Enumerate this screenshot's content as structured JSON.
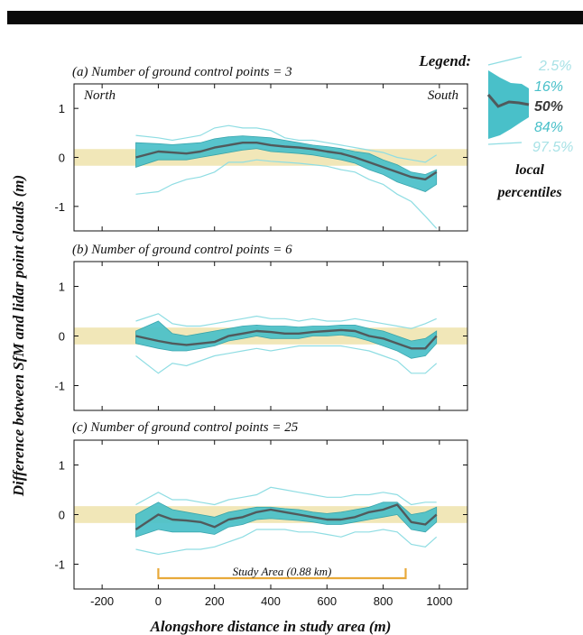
{
  "figure": {
    "ylabel": "Difference between SfM and lidar point clouds (m)",
    "xlabel": "Alongshore distance in study area (m)",
    "north_label": "North",
    "south_label": "South",
    "study_area_label": "Study Area (0.88 km)",
    "study_area_range": [
      0,
      880
    ],
    "reference_band": [
      -0.17,
      0.17
    ]
  },
  "legend": {
    "title": "Legend:",
    "p025": "2.5%",
    "p16": "16%",
    "p50": "50%",
    "p84": "84%",
    "p975": "97.5%",
    "caption_line1": "local",
    "caption_line2": "percentiles"
  },
  "colors": {
    "band_fill": "#49c0c9",
    "band_edge": "#2a9fa8",
    "outer_line": "#8fdde3",
    "median": "#505a5c",
    "reference_band": "#efe3ac",
    "study_area_bracket": "#e8a93a",
    "study_area_text": "#8a2c1a",
    "legend_teal": "#49c0c9",
    "legend_light": "#a8e2e6",
    "legend_dark": "#3a3a3a"
  },
  "chart_data": [
    {
      "type": "line",
      "title": "(a) Number of ground control points = 3",
      "xlim": [
        -300,
        1100
      ],
      "ylim": [
        -1.5,
        1.5
      ],
      "xticks": [
        -200,
        0,
        200,
        400,
        600,
        800,
        1000
      ],
      "yticks": [
        -1,
        0,
        1
      ],
      "x": [
        -80,
        0,
        50,
        100,
        150,
        200,
        250,
        300,
        350,
        400,
        450,
        500,
        550,
        600,
        650,
        700,
        750,
        800,
        850,
        900,
        950,
        990
      ],
      "series": [
        {
          "name": "97.5%",
          "values": [
            0.45,
            0.4,
            0.35,
            0.4,
            0.45,
            0.6,
            0.65,
            0.6,
            0.6,
            0.55,
            0.4,
            0.35,
            0.35,
            0.3,
            0.25,
            0.2,
            0.15,
            0.1,
            0.0,
            -0.05,
            -0.1,
            0.05
          ]
        },
        {
          "name": "84%",
          "values": [
            0.3,
            0.28,
            0.26,
            0.28,
            0.3,
            0.38,
            0.42,
            0.44,
            0.42,
            0.4,
            0.35,
            0.3,
            0.25,
            0.22,
            0.18,
            0.12,
            0.08,
            -0.05,
            -0.15,
            -0.3,
            -0.35,
            -0.25
          ]
        },
        {
          "name": "50%",
          "values": [
            0.0,
            0.12,
            0.1,
            0.08,
            0.12,
            0.2,
            0.25,
            0.3,
            0.3,
            0.25,
            0.22,
            0.2,
            0.17,
            0.12,
            0.08,
            0.0,
            -0.1,
            -0.2,
            -0.3,
            -0.4,
            -0.45,
            -0.3
          ]
        },
        {
          "name": "16%",
          "values": [
            -0.2,
            -0.05,
            -0.05,
            -0.05,
            0.0,
            0.05,
            0.1,
            0.15,
            0.18,
            0.12,
            0.1,
            0.08,
            0.05,
            0.0,
            -0.05,
            -0.12,
            -0.25,
            -0.35,
            -0.5,
            -0.6,
            -0.7,
            -0.55
          ]
        },
        {
          "name": "2.5%",
          "values": [
            -0.75,
            -0.7,
            -0.55,
            -0.45,
            -0.4,
            -0.3,
            -0.1,
            -0.1,
            -0.05,
            -0.08,
            -0.1,
            -0.12,
            -0.15,
            -0.18,
            -0.25,
            -0.3,
            -0.45,
            -0.55,
            -0.75,
            -0.9,
            -1.2,
            -1.45
          ]
        }
      ]
    },
    {
      "type": "line",
      "title": "(b) Number of ground control points = 6",
      "xlim": [
        -300,
        1100
      ],
      "ylim": [
        -1.5,
        1.5
      ],
      "xticks": [
        -200,
        0,
        200,
        400,
        600,
        800,
        1000
      ],
      "yticks": [
        -1,
        0,
        1
      ],
      "x": [
        -80,
        0,
        50,
        100,
        150,
        200,
        250,
        300,
        350,
        400,
        450,
        500,
        550,
        600,
        650,
        700,
        750,
        800,
        850,
        900,
        950,
        990
      ],
      "series": [
        {
          "name": "97.5%",
          "values": [
            0.3,
            0.45,
            0.25,
            0.2,
            0.2,
            0.25,
            0.3,
            0.35,
            0.4,
            0.35,
            0.35,
            0.3,
            0.35,
            0.3,
            0.3,
            0.35,
            0.3,
            0.25,
            0.2,
            0.15,
            0.25,
            0.35
          ]
        },
        {
          "name": "84%",
          "values": [
            0.1,
            0.3,
            0.05,
            0.0,
            0.05,
            0.1,
            0.15,
            0.2,
            0.22,
            0.2,
            0.2,
            0.18,
            0.2,
            0.2,
            0.22,
            0.22,
            0.15,
            0.1,
            0.0,
            -0.1,
            -0.05,
            0.1
          ]
        },
        {
          "name": "50%",
          "values": [
            0.0,
            -0.1,
            -0.15,
            -0.18,
            -0.15,
            -0.12,
            0.0,
            0.05,
            0.1,
            0.08,
            0.05,
            0.05,
            0.08,
            0.1,
            0.12,
            0.1,
            0.0,
            -0.05,
            -0.15,
            -0.25,
            -0.25,
            0.0
          ]
        },
        {
          "name": "16%",
          "values": [
            -0.15,
            -0.25,
            -0.3,
            -0.3,
            -0.25,
            -0.2,
            -0.1,
            -0.05,
            0.0,
            -0.05,
            -0.05,
            -0.05,
            0.0,
            0.0,
            0.02,
            -0.02,
            -0.1,
            -0.2,
            -0.3,
            -0.45,
            -0.4,
            -0.15
          ]
        },
        {
          "name": "2.5%",
          "values": [
            -0.4,
            -0.75,
            -0.55,
            -0.6,
            -0.5,
            -0.4,
            -0.35,
            -0.3,
            -0.25,
            -0.3,
            -0.25,
            -0.2,
            -0.2,
            -0.2,
            -0.2,
            -0.25,
            -0.3,
            -0.4,
            -0.5,
            -0.75,
            -0.75,
            -0.55
          ]
        }
      ]
    },
    {
      "type": "line",
      "title": "(c) Number of ground control points = 25",
      "xlim": [
        -300,
        1100
      ],
      "ylim": [
        -1.5,
        1.5
      ],
      "xticks": [
        -200,
        0,
        200,
        400,
        600,
        800,
        1000
      ],
      "yticks": [
        -1,
        0,
        1
      ],
      "x": [
        -80,
        0,
        50,
        100,
        150,
        200,
        250,
        300,
        350,
        400,
        450,
        500,
        550,
        600,
        650,
        700,
        750,
        800,
        850,
        900,
        950,
        990
      ],
      "series": [
        {
          "name": "97.5%",
          "values": [
            0.2,
            0.45,
            0.3,
            0.3,
            0.25,
            0.2,
            0.3,
            0.35,
            0.4,
            0.55,
            0.5,
            0.45,
            0.4,
            0.35,
            0.35,
            0.4,
            0.4,
            0.45,
            0.4,
            0.2,
            0.25,
            0.25
          ]
        },
        {
          "name": "84%",
          "values": [
            0.0,
            0.25,
            0.1,
            0.05,
            0.0,
            -0.05,
            0.05,
            0.1,
            0.15,
            0.15,
            0.12,
            0.1,
            0.05,
            0.02,
            0.05,
            0.1,
            0.15,
            0.25,
            0.25,
            0.0,
            0.05,
            0.15
          ]
        },
        {
          "name": "50%",
          "values": [
            -0.3,
            0.0,
            -0.1,
            -0.12,
            -0.15,
            -0.25,
            -0.1,
            -0.05,
            0.05,
            0.1,
            0.05,
            0.0,
            -0.05,
            -0.1,
            -0.1,
            -0.05,
            0.05,
            0.1,
            0.2,
            -0.15,
            -0.2,
            0.0
          ]
        },
        {
          "name": "16%",
          "values": [
            -0.45,
            -0.3,
            -0.35,
            -0.35,
            -0.35,
            -0.4,
            -0.25,
            -0.2,
            -0.1,
            -0.08,
            -0.1,
            -0.12,
            -0.15,
            -0.2,
            -0.2,
            -0.15,
            -0.1,
            -0.05,
            0.0,
            -0.3,
            -0.35,
            -0.15
          ]
        },
        {
          "name": "2.5%",
          "values": [
            -0.7,
            -0.8,
            -0.75,
            -0.7,
            -0.7,
            -0.65,
            -0.55,
            -0.45,
            -0.3,
            -0.3,
            -0.3,
            -0.35,
            -0.35,
            -0.4,
            -0.45,
            -0.35,
            -0.35,
            -0.3,
            -0.35,
            -0.6,
            -0.65,
            -0.45
          ]
        }
      ]
    }
  ]
}
